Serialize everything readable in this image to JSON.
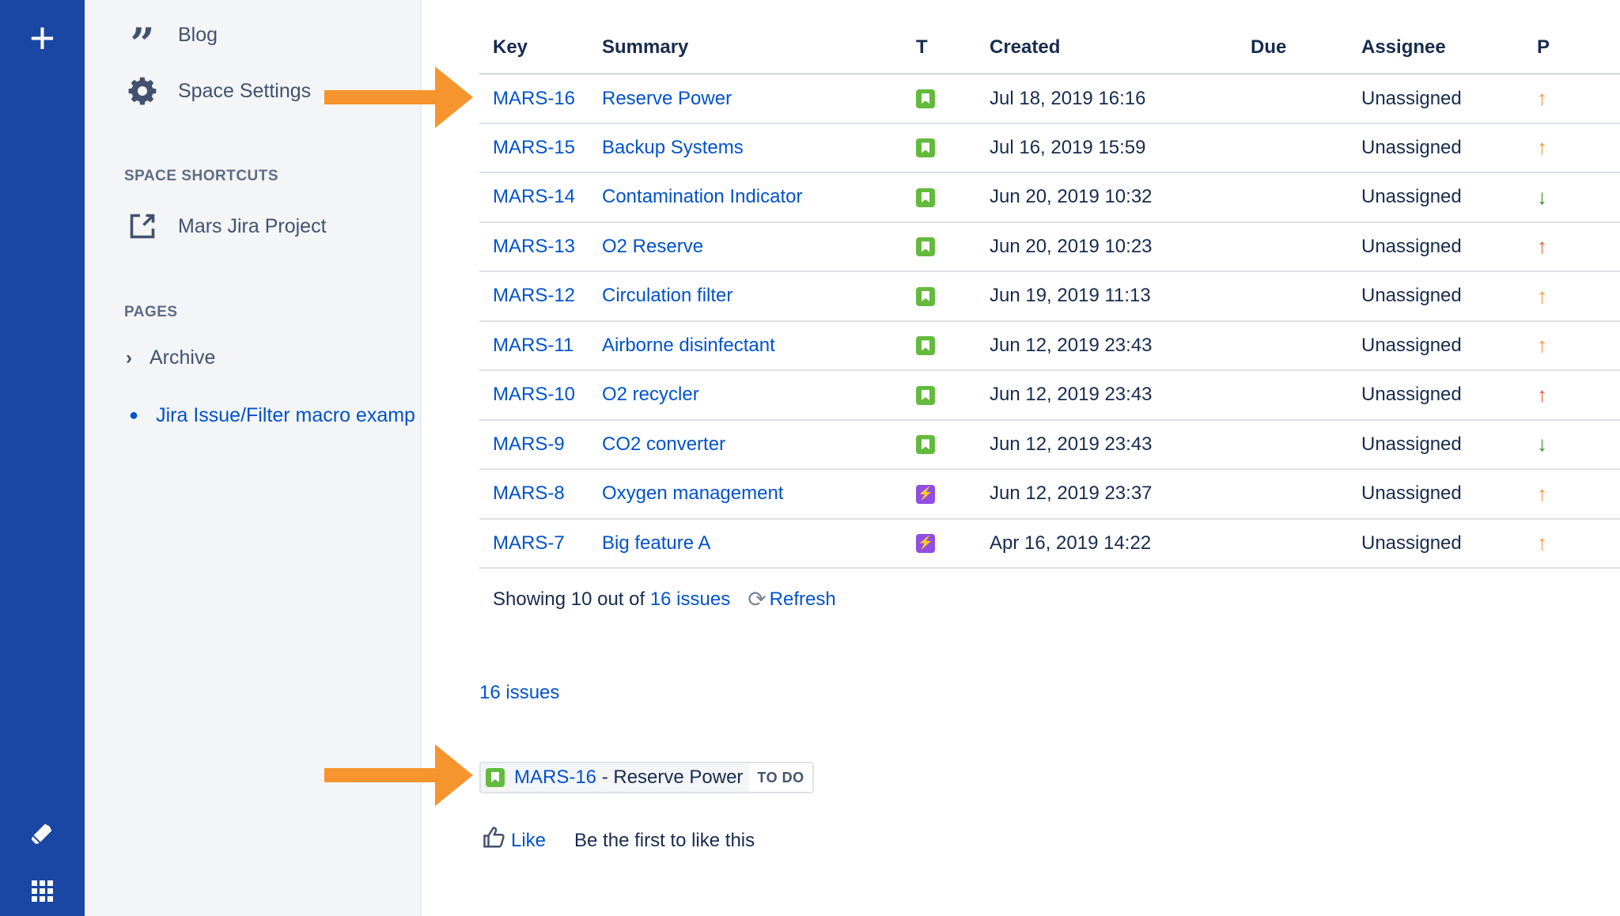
{
  "global_nav": {
    "create_icon": "plus-icon",
    "notifications_icon": "megaphone-icon",
    "apps_icon": "grid-icon"
  },
  "sidebar": {
    "blog": "Blog",
    "space_settings": "Space Settings",
    "shortcuts_heading": "SPACE SHORTCUTS",
    "shortcut": "Mars Jira Project",
    "pages_heading": "PAGES",
    "archive": "Archive",
    "current_page": "Jira Issue/Filter macro examp"
  },
  "table": {
    "headers": [
      "Key",
      "Summary",
      "T",
      "Created",
      "Due",
      "Assignee",
      "P"
    ],
    "rows": [
      {
        "key": "MARS-16",
        "summary": "Reserve Power",
        "type": "story",
        "created": "Jul 18, 2019 16:16",
        "due": "",
        "assignee": "Unassigned",
        "priority": "up",
        "pcolor": "#f79232"
      },
      {
        "key": "MARS-15",
        "summary": "Backup Systems",
        "type": "story",
        "created": "Jul 16, 2019 15:59",
        "due": "",
        "assignee": "Unassigned",
        "priority": "up",
        "pcolor": "#f79232"
      },
      {
        "key": "MARS-14",
        "summary": "Contamination Indicator",
        "type": "story",
        "created": "Jun 20, 2019 10:32",
        "due": "",
        "assignee": "Unassigned",
        "priority": "down",
        "pcolor": "#3a8a2a"
      },
      {
        "key": "MARS-13",
        "summary": "O2 Reserve",
        "type": "story",
        "created": "Jun 20, 2019 10:23",
        "due": "",
        "assignee": "Unassigned",
        "priority": "up",
        "pcolor": "#e9572c"
      },
      {
        "key": "MARS-12",
        "summary": "Circulation filter",
        "type": "story",
        "created": "Jun 19, 2019 11:13",
        "due": "",
        "assignee": "Unassigned",
        "priority": "up",
        "pcolor": "#f79232"
      },
      {
        "key": "MARS-11",
        "summary": "Airborne disinfectant",
        "type": "story",
        "created": "Jun 12, 2019 23:43",
        "due": "",
        "assignee": "Unassigned",
        "priority": "up",
        "pcolor": "#f79232"
      },
      {
        "key": "MARS-10",
        "summary": "O2 recycler",
        "type": "story",
        "created": "Jun 12, 2019 23:43",
        "due": "",
        "assignee": "Unassigned",
        "priority": "up",
        "pcolor": "#e9572c"
      },
      {
        "key": "MARS-9",
        "summary": "CO2 converter",
        "type": "story",
        "created": "Jun 12, 2019 23:43",
        "due": "",
        "assignee": "Unassigned",
        "priority": "down",
        "pcolor": "#3a8a2a"
      },
      {
        "key": "MARS-8",
        "summary": "Oxygen management",
        "type": "epic",
        "created": "Jun 12, 2019 23:37",
        "due": "",
        "assignee": "Unassigned",
        "priority": "up",
        "pcolor": "#f79232"
      },
      {
        "key": "MARS-7",
        "summary": "Big feature A",
        "type": "epic",
        "created": "Apr 16, 2019 14:22",
        "due": "",
        "assignee": "Unassigned",
        "priority": "up",
        "pcolor": "#f79232"
      }
    ]
  },
  "footer": {
    "showing_prefix": "Showing 10 out of",
    "showing_link": "16 issues",
    "refresh": "Refresh"
  },
  "count_link": "16 issues",
  "issue_chip": {
    "key": "MARS-16",
    "separator": " - ",
    "summary": "Reserve Power",
    "status": "TO DO"
  },
  "like": {
    "label": "Like",
    "message": "Be the first to like this"
  },
  "colors": {
    "link": "#0052cc",
    "nav": "#1a47a3",
    "annotation_arrow": "#f6952d"
  }
}
